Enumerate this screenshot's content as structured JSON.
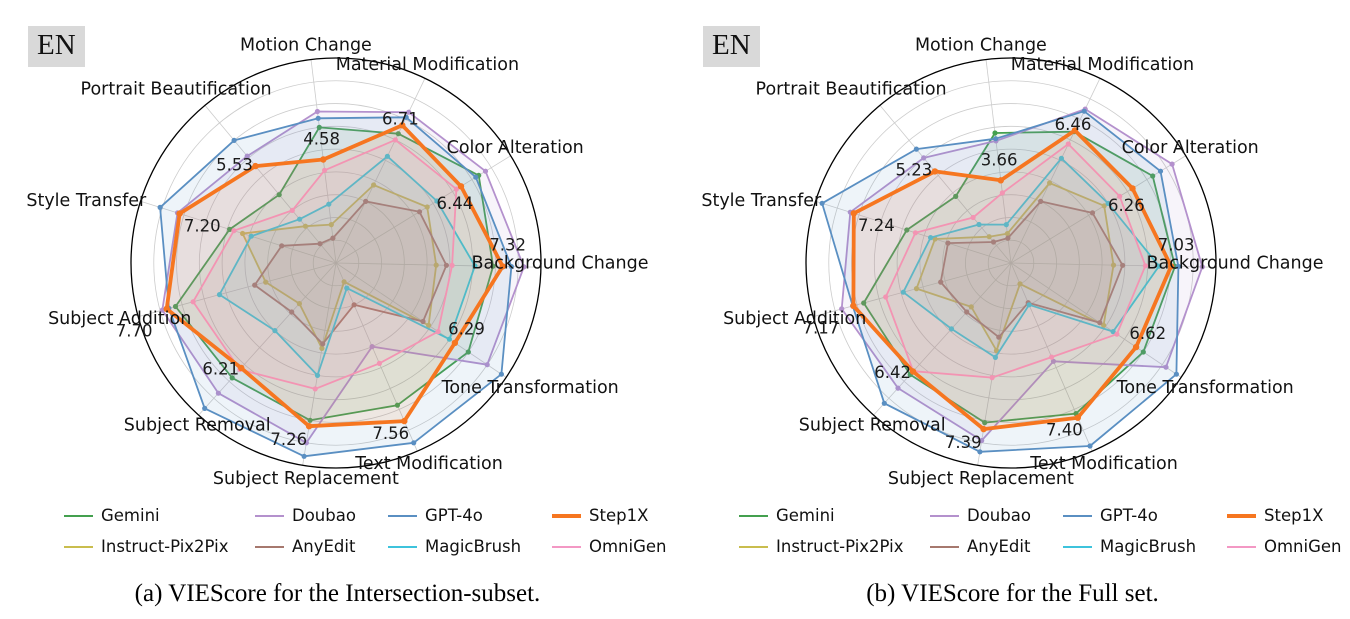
{
  "figure": {
    "panels": [
      {
        "id": "a",
        "en_badge": "EN",
        "caption": "(a) VIEScore for the Intersection-subset."
      },
      {
        "id": "b",
        "en_badge": "EN",
        "caption": "(b) VIEScore for the Full set."
      }
    ]
  },
  "chart_data": [
    {
      "type": "radar",
      "title": "VIEScore for the Intersection-subset",
      "rmax": 9,
      "grid": true,
      "legend_position": "bottom",
      "categories": [
        "Motion Change",
        "Material Modification",
        "Color Alteration",
        "Background Change",
        "Tone Transformation",
        "Text Modification",
        "Subject Replacement",
        "Subject Removal",
        "Subject Addition",
        "Style Transfer",
        "Portrait Beautification"
      ],
      "series": [
        {
          "name": "Gemini",
          "color": "#44a04f",
          "values": [
            6.0,
            6.3,
            7.35,
            6.9,
            7.0,
            6.8,
            7.0,
            6.8,
            7.3,
            4.9,
            3.9
          ]
        },
        {
          "name": "Instruct-Pix2Pix",
          "color": "#c9bd4e",
          "values": [
            1.7,
            3.8,
            4.7,
            4.4,
            4.9,
            0.9,
            3.8,
            2.4,
            3.2,
            4.3,
            2.1
          ]
        },
        {
          "name": "Doubao",
          "color": "#b491cd",
          "values": [
            6.7,
            7.35,
            7.7,
            8.25,
            8.0,
            4.0,
            8.0,
            7.7,
            7.9,
            7.3,
            6.1
          ]
        },
        {
          "name": "AnyEdit",
          "color": "#a6786e",
          "values": [
            1.1,
            3.0,
            4.3,
            4.85,
            4.6,
            2.0,
            3.6,
            2.9,
            3.7,
            2.5,
            1.1
          ]
        },
        {
          "name": "GPT-4o",
          "color": "#5a8fc2",
          "values": [
            6.4,
            7.1,
            7.2,
            7.7,
            8.75,
            8.6,
            8.6,
            8.6,
            7.6,
            8.1,
            7.0
          ]
        },
        {
          "name": "MagicBrush",
          "color": "#3dc3dc",
          "values": [
            2.6,
            5.2,
            5.2,
            6.1,
            6.0,
            1.2,
            5.0,
            4.0,
            5.3,
            3.9,
            2.5
          ]
        },
        {
          "name": "Step1X",
          "color": "#f67620",
          "emph": true,
          "values": [
            4.58,
            6.71,
            6.44,
            7.32,
            6.29,
            7.56,
            7.26,
            6.21,
            7.7,
            7.2,
            5.53
          ]
        },
        {
          "name": "OmniGen",
          "color": "#f398c4",
          "values": [
            4.1,
            6.0,
            6.2,
            5.1,
            5.4,
            4.8,
            5.6,
            6.3,
            6.5,
            4.7,
            3.0
          ]
        }
      ],
      "annotated_series": "Step1X",
      "annotations": [
        "4.58",
        "6.71",
        "6.44",
        "7.32",
        "6.29",
        "7.56",
        "7.26",
        "6.21",
        "7.70",
        "7.20",
        "5.53"
      ]
    },
    {
      "type": "radar",
      "title": "VIEScore for the Full set",
      "rmax": 9,
      "grid": true,
      "legend_position": "bottom",
      "categories": [
        "Motion Change",
        "Material Modification",
        "Color Alteration",
        "Background Change",
        "Tone Transformation",
        "Text Modification",
        "Subject Replacement",
        "Subject Removal",
        "Subject Addition",
        "Style Transfer",
        "Portrait Beautification"
      ],
      "series": [
        {
          "name": "Gemini",
          "color": "#44a04f",
          "values": [
            5.75,
            6.4,
            7.3,
            7.2,
            7.0,
            7.2,
            7.1,
            6.6,
            6.7,
            4.8,
            3.8
          ]
        },
        {
          "name": "Instruct-Pix2Pix",
          "color": "#c9bd4e",
          "values": [
            1.3,
            3.9,
            4.8,
            4.5,
            4.9,
            1.0,
            3.9,
            2.6,
            4.3,
            3.5,
            1.5
          ]
        },
        {
          "name": "Doubao",
          "color": "#b491cd",
          "values": [
            5.4,
            7.5,
            8.3,
            8.4,
            8.2,
            4.7,
            7.9,
            7.4,
            7.7,
            7.4,
            6.0
          ]
        },
        {
          "name": "AnyEdit",
          "color": "#a6786e",
          "values": [
            1.1,
            3.0,
            4.2,
            4.9,
            4.7,
            1.9,
            3.3,
            2.9,
            3.2,
            2.9,
            1.2
          ]
        },
        {
          "name": "GPT-4o",
          "color": "#5a8fc2",
          "values": [
            5.5,
            7.4,
            7.7,
            7.35,
            8.75,
            8.75,
            8.4,
            8.3,
            7.2,
            8.7,
            6.5
          ]
        },
        {
          "name": "MagicBrush",
          "color": "#3dc3dc",
          "values": [
            1.7,
            5.1,
            5.0,
            6.5,
            5.4,
            2.0,
            4.2,
            3.9,
            4.9,
            3.7,
            2.2
          ]
        },
        {
          "name": "Step1X",
          "color": "#f67620",
          "emph": true,
          "values": [
            3.66,
            6.46,
            6.26,
            7.03,
            6.62,
            7.4,
            7.39,
            6.42,
            7.17,
            7.24,
            5.23
          ]
        },
        {
          "name": "OmniGen",
          "color": "#f398c4",
          "values": [
            3.1,
            5.8,
            5.6,
            5.9,
            5.6,
            4.5,
            5.1,
            6.4,
            5.7,
            4.4,
            2.6
          ]
        }
      ],
      "annotated_series": "Step1X",
      "annotations": [
        "3.66",
        "6.46",
        "6.26",
        "7.03",
        "6.62",
        "7.40",
        "7.39",
        "6.42",
        "7.17",
        "7.24",
        "5.23"
      ]
    }
  ]
}
